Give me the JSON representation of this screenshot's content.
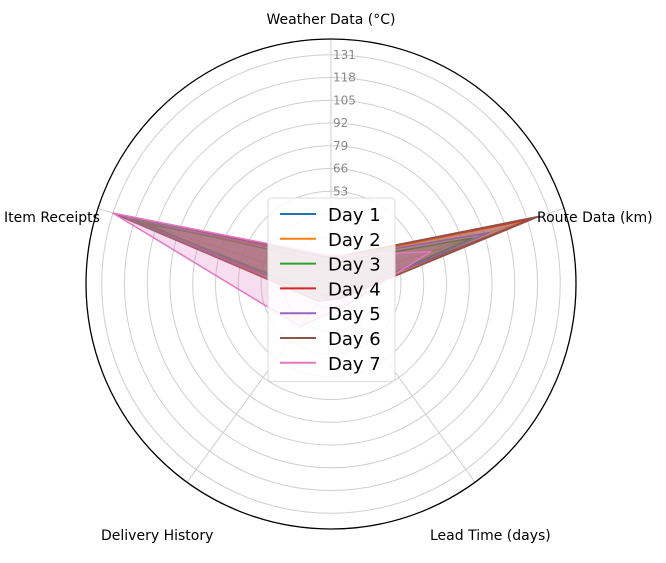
{
  "chart_data": {
    "type": "radar",
    "axes": [
      "Weather Data (°C)",
      "Route Data (km)",
      "Lead Time (days)",
      "Delivery History",
      "Item Receipts"
    ],
    "r_ticks": [
      1,
      14,
      27,
      40,
      53,
      66,
      79,
      92,
      105,
      118,
      131
    ],
    "r_tick_labels_shown": [
      "53",
      "66",
      "79",
      "92",
      "105",
      "118",
      "131"
    ],
    "rlim": [
      0,
      140
    ],
    "grid": true,
    "legend_location": "center",
    "series": [
      {
        "name": "Day 1",
        "color": "#1f77b4",
        "values": [
          15,
          120,
          8,
          10,
          110
        ]
      },
      {
        "name": "Day 2",
        "color": "#ff7f0e",
        "values": [
          14,
          118,
          10,
          12,
          115
        ]
      },
      {
        "name": "Day 3",
        "color": "#2ca02c",
        "values": [
          12,
          85,
          9,
          8,
          120
        ]
      },
      {
        "name": "Day 4",
        "color": "#d62728",
        "values": [
          15,
          120,
          10,
          12,
          131
        ]
      },
      {
        "name": "Day 5",
        "color": "#9467bd",
        "values": [
          14,
          95,
          9,
          10,
          128
        ]
      },
      {
        "name": "Day 6",
        "color": "#8c564b",
        "values": [
          15,
          125,
          10,
          12,
          131
        ]
      },
      {
        "name": "Day 7",
        "color": "#e377c2",
        "values": [
          16,
          60,
          15,
          30,
          131
        ]
      }
    ]
  }
}
